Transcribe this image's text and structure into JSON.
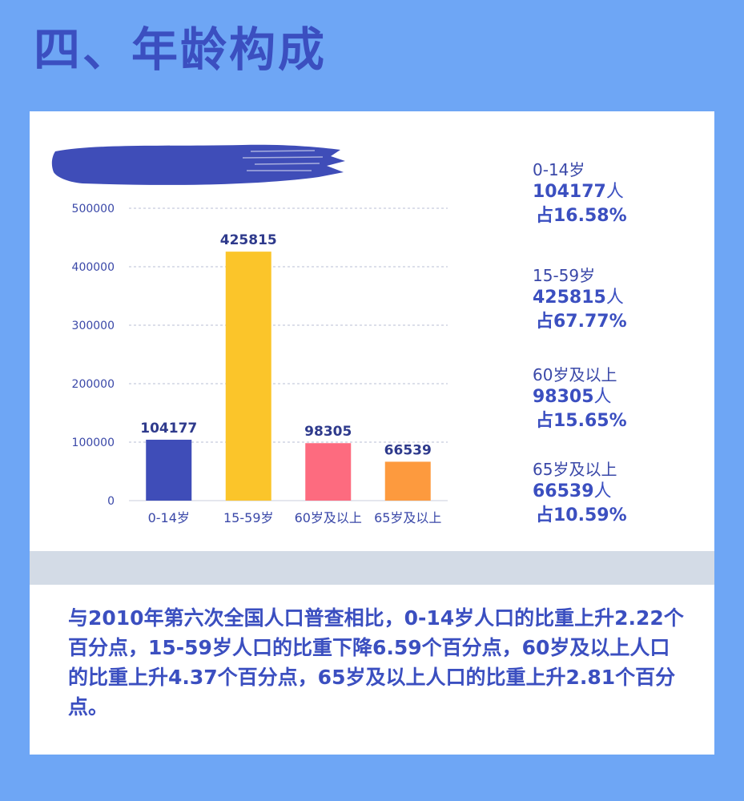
{
  "title": "四、年龄构成",
  "chart_data": {
    "type": "bar",
    "categories": [
      "0-14岁",
      "15-59岁",
      "60岁及以上",
      "65岁及以上"
    ],
    "values": [
      104177,
      425815,
      98305,
      66539
    ],
    "data_labels": [
      "104177",
      "425815",
      "98305",
      "66539"
    ],
    "colors": [
      "#3f4db8",
      "#fbc52a",
      "#fd6b7f",
      "#fd9a3e"
    ],
    "ylim": [
      0,
      500000
    ],
    "yticks": [
      0,
      100000,
      200000,
      300000,
      400000,
      500000
    ],
    "ytick_labels": [
      "0",
      "100000",
      "200000",
      "300000",
      "400000",
      "500000"
    ],
    "grid": true,
    "title": "",
    "xlabel": "",
    "ylabel": ""
  },
  "stats": [
    {
      "label": "0-14岁",
      "count": "104177",
      "unit": "人",
      "share": "占16.58%"
    },
    {
      "label": "15-59岁",
      "count": "425815",
      "unit": "人",
      "share": "占67.77%"
    },
    {
      "label": "60岁及以上",
      "count": "98305",
      "unit": "人",
      "share": "占15.65%"
    },
    {
      "label": "65岁及以上",
      "count": "66539",
      "unit": "人",
      "share": "占10.59%"
    }
  ],
  "summary": "与2010年第六次全国人口普查相比，0-14岁人口的比重上升2.22个百分点，15-59岁人口的比重下降6.59个百分点，60岁及以上人口的比重上升4.37个百分点，65岁及以上人口的比重上升2.81个百分点。"
}
